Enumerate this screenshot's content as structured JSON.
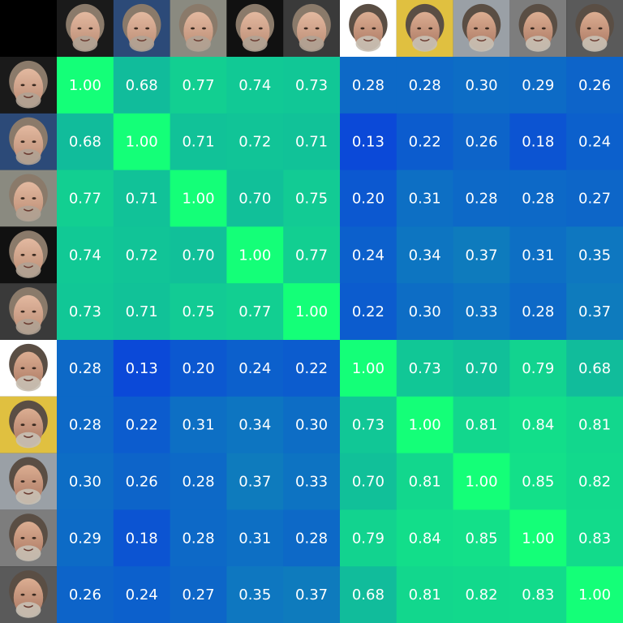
{
  "chart_data": {
    "type": "heatmap",
    "title": "",
    "xlabel": "",
    "ylabel": "",
    "column_thumbnails": [
      "face-a1",
      "face-a2",
      "face-a3",
      "face-a4",
      "face-a5",
      "face-b1",
      "face-b2",
      "face-b3",
      "face-b4",
      "face-b5"
    ],
    "row_thumbnails": [
      "face-a1",
      "face-a2",
      "face-a3",
      "face-a4",
      "face-a5",
      "face-b1",
      "face-b2",
      "face-b3",
      "face-b4",
      "face-b5"
    ],
    "value_range": [
      0,
      1
    ],
    "colormap": {
      "low": "#0a2ee6",
      "high": "#14ff78"
    },
    "values": [
      [
        1.0,
        0.68,
        0.77,
        0.74,
        0.73,
        0.28,
        0.28,
        0.3,
        0.29,
        0.26
      ],
      [
        0.68,
        1.0,
        0.71,
        0.72,
        0.71,
        0.13,
        0.22,
        0.26,
        0.18,
        0.24
      ],
      [
        0.77,
        0.71,
        1.0,
        0.7,
        0.75,
        0.2,
        0.31,
        0.28,
        0.28,
        0.27
      ],
      [
        0.74,
        0.72,
        0.7,
        1.0,
        0.77,
        0.24,
        0.34,
        0.37,
        0.31,
        0.35
      ],
      [
        0.73,
        0.71,
        0.75,
        0.77,
        1.0,
        0.22,
        0.3,
        0.33,
        0.28,
        0.37
      ],
      [
        0.28,
        0.13,
        0.2,
        0.24,
        0.22,
        1.0,
        0.73,
        0.7,
        0.79,
        0.68
      ],
      [
        0.28,
        0.22,
        0.31,
        0.34,
        0.3,
        0.73,
        1.0,
        0.81,
        0.84,
        0.81
      ],
      [
        0.3,
        0.26,
        0.28,
        0.37,
        0.33,
        0.7,
        0.81,
        1.0,
        0.85,
        0.82
      ],
      [
        0.29,
        0.18,
        0.28,
        0.31,
        0.28,
        0.79,
        0.84,
        0.85,
        1.0,
        0.83
      ],
      [
        0.26,
        0.24,
        0.27,
        0.35,
        0.37,
        0.68,
        0.81,
        0.82,
        0.83,
        1.0
      ]
    ]
  }
}
